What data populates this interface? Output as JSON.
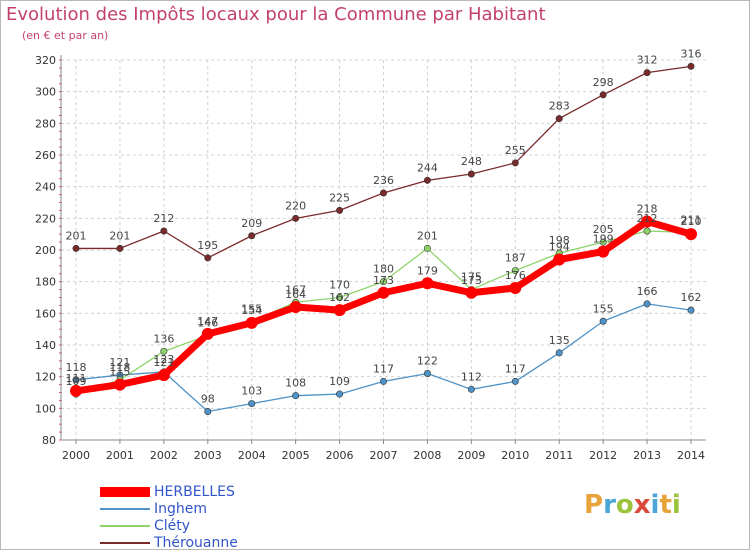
{
  "header": {
    "title": "Evolution des Impôts locaux pour la Commune par Habitant",
    "subtitle": "(en € et par an)"
  },
  "brand": {
    "logo_letters": [
      "P",
      "r",
      "o",
      "x",
      "i",
      "t",
      "i"
    ],
    "logo_colors": [
      "#e8a33a",
      "#4aa6d6",
      "#9ac43c",
      "#d94a3a",
      "#4aa6d6",
      "#e8a33a",
      "#9ac43c"
    ]
  },
  "chart_data": {
    "type": "line",
    "title": "Evolution des Impôts locaux pour la Commune par Habitant",
    "subtitle": "(en € et par an)",
    "x": [
      "2000",
      "2001",
      "2002",
      "2003",
      "2004",
      "2005",
      "2006",
      "2007",
      "2008",
      "2009",
      "2010",
      "2011",
      "2012",
      "2013",
      "2014"
    ],
    "ylim": [
      80,
      320
    ],
    "yticks": [
      80,
      100,
      120,
      140,
      160,
      180,
      200,
      220,
      240,
      260,
      280,
      300,
      320
    ],
    "grid": true,
    "legend_position": "bottom-left",
    "series": [
      {
        "name": "HERBELLES",
        "color": "#ff0000",
        "values": [
          111,
          115,
          121,
          147,
          154,
          164,
          162,
          173,
          179,
          173,
          176,
          194,
          199,
          218,
          210
        ]
      },
      {
        "name": "Inghem",
        "color": "#4f93c8",
        "values": [
          118,
          121,
          123,
          98,
          103,
          108,
          109,
          117,
          122,
          112,
          117,
          135,
          155,
          166,
          162
        ]
      },
      {
        "name": "Cléty",
        "color": "#8ed46b",
        "values": [
          109,
          118,
          136,
          146,
          155,
          167,
          170,
          180,
          201,
          175,
          187,
          198,
          205,
          212,
          211
        ]
      },
      {
        "name": "Thérouanne",
        "color": "#7a2a2a",
        "values": [
          201,
          201,
          212,
          195,
          209,
          220,
          225,
          236,
          244,
          248,
          255,
          283,
          298,
          312,
          316
        ]
      }
    ]
  }
}
